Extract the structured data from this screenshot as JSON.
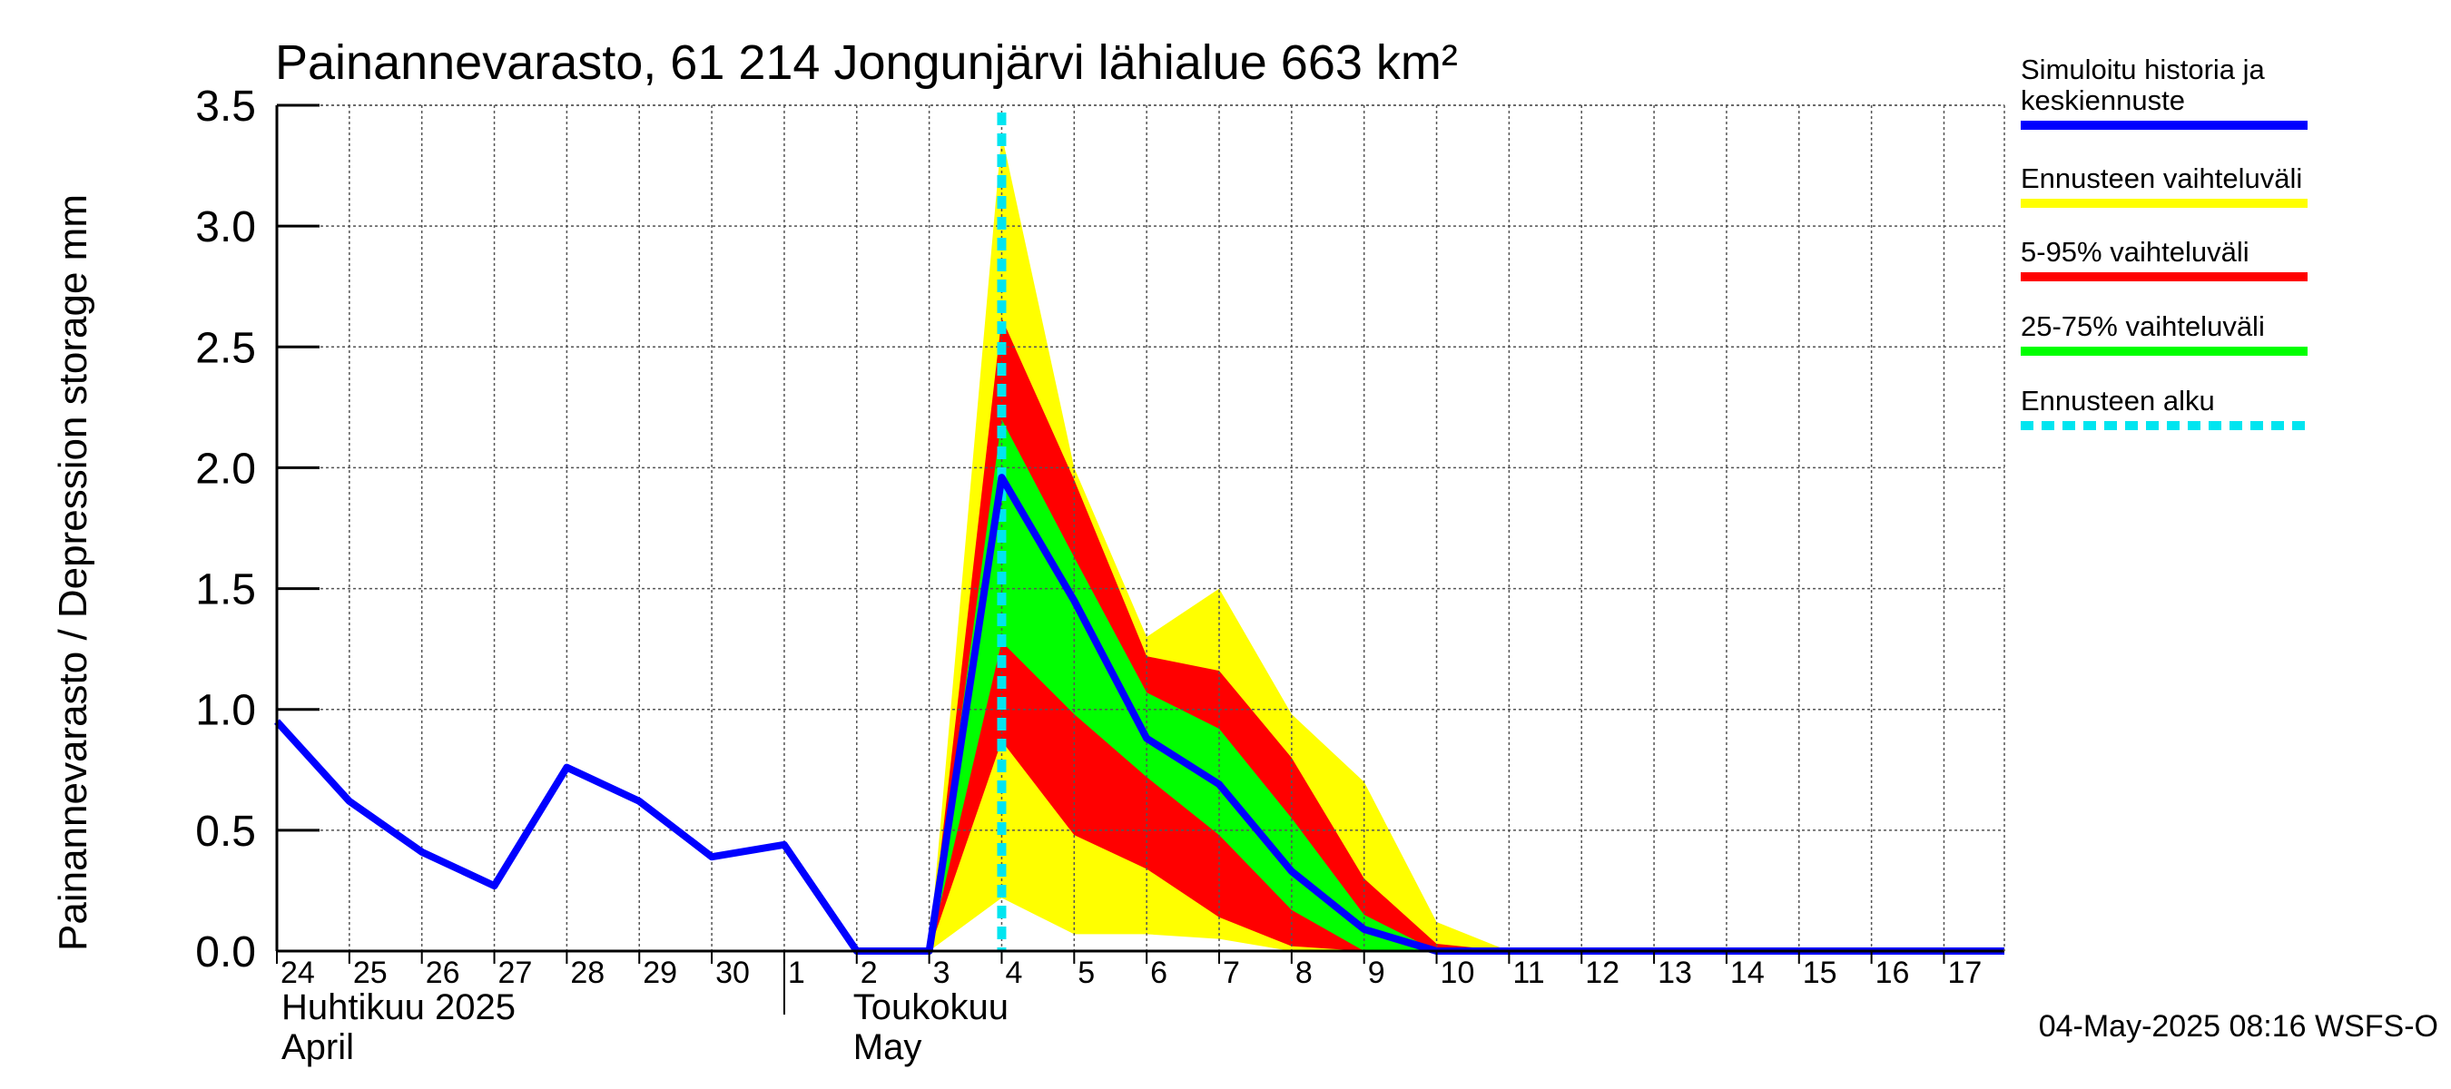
{
  "chart_data": {
    "type": "area",
    "title": "Painannevarasto, 61 214 Jongunjärvi lähialue 663 km²",
    "ylabel": "Painannevarasto / Depression storage    mm",
    "ylim": [
      0,
      3.5
    ],
    "yticks": [
      "0.0",
      "0.5",
      "1.0",
      "1.5",
      "2.0",
      "2.5",
      "3.0",
      "3.5"
    ],
    "xlim": [
      "2025-04-24",
      "2025-05-17T20:00"
    ],
    "x_days": [
      "24",
      "25",
      "26",
      "27",
      "28",
      "29",
      "30",
      "1",
      "2",
      "3",
      "4",
      "5",
      "6",
      "7",
      "8",
      "9",
      "10",
      "11",
      "12",
      "13",
      "14",
      "15",
      "16",
      "17"
    ],
    "month_labels": [
      {
        "line1": "Huhtikuu  2025",
        "line2": "April"
      },
      {
        "line1": "Toukokuu",
        "line2": "May"
      }
    ],
    "grid": true,
    "legend_position": "right",
    "forecast_start": "2025-05-04T00:00",
    "series": [
      {
        "name": "Simuloitu historia ja keskiennuste",
        "color": "#0000ff",
        "points": [
          [
            "2025-04-24",
            0.95
          ],
          [
            "2025-04-25",
            0.62
          ],
          [
            "2025-04-26",
            0.41
          ],
          [
            "2025-04-27",
            0.27
          ],
          [
            "2025-04-28",
            0.76
          ],
          [
            "2025-04-29",
            0.62
          ],
          [
            "2025-04-30",
            0.39
          ],
          [
            "2025-05-01",
            0.44
          ],
          [
            "2025-05-02",
            0.0
          ],
          [
            "2025-05-03",
            0.0
          ],
          [
            "2025-05-04",
            1.96
          ],
          [
            "2025-05-05",
            1.45
          ],
          [
            "2025-05-06",
            0.88
          ],
          [
            "2025-05-07",
            0.69
          ],
          [
            "2025-05-08",
            0.33
          ],
          [
            "2025-05-09",
            0.09
          ],
          [
            "2025-05-10",
            0.0
          ],
          [
            "2025-05-17T20:00",
            0.0
          ]
        ]
      },
      {
        "name": "Ennusteen vaihteluväli",
        "color": "#ffff00",
        "x": [
          "2025-05-03",
          "2025-05-04",
          "2025-05-05",
          "2025-05-06",
          "2025-05-07",
          "2025-05-08",
          "2025-05-09",
          "2025-05-10",
          "2025-05-11",
          "2025-05-17T20:00"
        ],
        "upper": [
          0.0,
          3.38,
          2.0,
          1.3,
          1.5,
          0.98,
          0.7,
          0.12,
          0.0,
          0.0
        ],
        "lower": [
          0.0,
          0.22,
          0.07,
          0.07,
          0.05,
          0.0,
          0.0,
          0.0,
          0.0,
          0.0
        ]
      },
      {
        "name": "5-95% vaihteluväli",
        "color": "#ff0000",
        "x": [
          "2025-05-03",
          "2025-05-04",
          "2025-05-05",
          "2025-05-06",
          "2025-05-07",
          "2025-05-08",
          "2025-05-09",
          "2025-05-10",
          "2025-05-11",
          "2025-05-17T20:00"
        ],
        "upper": [
          0.0,
          2.62,
          1.95,
          1.22,
          1.16,
          0.8,
          0.3,
          0.03,
          0.0,
          0.0
        ],
        "lower": [
          0.0,
          0.87,
          0.48,
          0.34,
          0.14,
          0.02,
          0.0,
          0.0,
          0.0,
          0.0
        ]
      },
      {
        "name": "25-75% vaihteluväli",
        "color": "#00ff00",
        "x": [
          "2025-05-03",
          "2025-05-04",
          "2025-05-05",
          "2025-05-06",
          "2025-05-07",
          "2025-05-08",
          "2025-05-09",
          "2025-05-10",
          "2025-05-11",
          "2025-05-17T20:00"
        ],
        "upper": [
          0.0,
          2.2,
          1.63,
          1.07,
          0.92,
          0.55,
          0.15,
          0.0,
          0.0,
          0.0
        ],
        "lower": [
          0.0,
          1.28,
          0.98,
          0.72,
          0.48,
          0.17,
          0.0,
          0.0,
          0.0,
          0.0
        ]
      },
      {
        "name": "Ennusteen alku",
        "color": "#00e5f0",
        "style": "dashed-vertical",
        "x": "2025-05-04T00:00"
      }
    ],
    "legend": [
      {
        "label": "Simuloitu historia ja\nkeskiennuste",
        "color": "#0000ff",
        "style": "solid"
      },
      {
        "label": "Ennusteen vaihteluväli",
        "color": "#ffff00",
        "style": "solid"
      },
      {
        "label": "5-95% vaihteluväli",
        "color": "#ff0000",
        "style": "solid"
      },
      {
        "label": "25-75% vaihteluväli",
        "color": "#00ff00",
        "style": "solid"
      },
      {
        "label": "Ennusteen alku",
        "color": "#00e5f0",
        "style": "dashed"
      }
    ],
    "timestamp": "04-May-2025 08:16 WSFS-O"
  }
}
